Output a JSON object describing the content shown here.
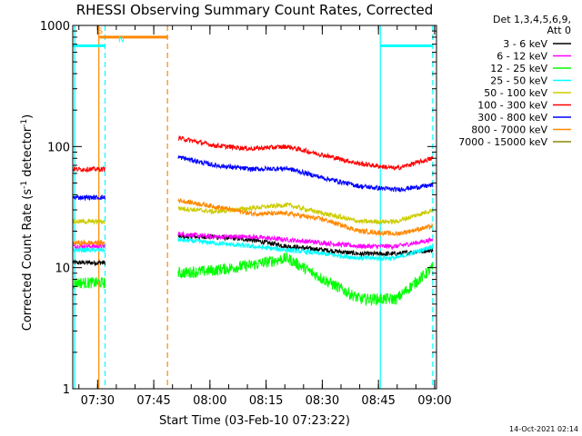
{
  "chart_data": {
    "type": "line",
    "title": "RHESSI Observing Summary Count Rates, Corrected",
    "xlabel": "Start Time (03-Feb-10 07:23:22)",
    "ylabel_main": "Corrected Count Rate (s",
    "ylabel_sup1": "-1",
    "ylabel_mid": " detector",
    "ylabel_sup2": "-1",
    "ylabel_end": ")",
    "yscale": "log",
    "xlim": [
      "07:23:22",
      "09:00:30"
    ],
    "ylim": [
      1,
      1000
    ],
    "y_ticks": [
      {
        "v": 1,
        "label": "1"
      },
      {
        "v": 10,
        "label": "10"
      },
      {
        "v": 100,
        "label": "100"
      },
      {
        "v": 1000,
        "label": "1000"
      }
    ],
    "x_ticks": [
      {
        "t": "07:30",
        "label": "07:30"
      },
      {
        "t": "07:45",
        "label": "07:45"
      },
      {
        "t": "08:00",
        "label": "08:00"
      },
      {
        "t": "08:15",
        "label": "08:15"
      },
      {
        "t": "08:30",
        "label": "08:30"
      },
      {
        "t": "08:45",
        "label": "08:45"
      },
      {
        "t": "09:00",
        "label": "09:00"
      }
    ],
    "legend_header": [
      "Det 1,3,4,5,6,9,",
      "Att 0"
    ],
    "legend_position": "top-right-outside",
    "series": [
      {
        "name": "3 - 6 keV",
        "color": "#000000",
        "pre": 11,
        "post": [
          18,
          18,
          17,
          15,
          14,
          13,
          13,
          14
        ]
      },
      {
        "name": "6 - 12 keV",
        "color": "#ff00ff",
        "pre": 15,
        "post": [
          19,
          18,
          18,
          17,
          16,
          15,
          15,
          17
        ]
      },
      {
        "name": "12 - 25 keV",
        "color": "#00ff00",
        "pre": 7.5,
        "post": [
          9,
          9.5,
          10.5,
          12,
          8,
          5.5,
          5.5,
          10
        ]
      },
      {
        "name": "25 - 50 keV",
        "color": "#00ffff",
        "pre": 14,
        "post": [
          17,
          16,
          15,
          14,
          13,
          12,
          12,
          15
        ]
      },
      {
        "name": "50 - 100 keV",
        "color": "#cccc00",
        "pre": 24,
        "post": [
          31,
          29,
          31,
          33,
          28,
          24,
          24,
          30
        ]
      },
      {
        "name": "100 - 300 keV",
        "color": "#ff0000",
        "pre": 65,
        "post": [
          118,
          102,
          96,
          100,
          85,
          72,
          66,
          80
        ]
      },
      {
        "name": "300 - 800 keV",
        "color": "#0000ff",
        "pre": 38,
        "post": [
          82,
          70,
          65,
          66,
          55,
          47,
          44,
          48
        ]
      },
      {
        "name": "800 - 7000 keV",
        "color": "#ff8800",
        "pre": 16,
        "post": [
          36,
          32,
          28,
          28,
          25,
          20,
          19,
          22
        ]
      },
      {
        "name": "7000 - 15000 keV",
        "color": "#888800",
        "pre": null,
        "post": null
      }
    ],
    "flags": [
      {
        "label": "S",
        "color": "#ff8800",
        "start": "07:30:30",
        "end": "07:48:40",
        "level": 800
      },
      {
        "label": "N",
        "color": "#00ffff",
        "start": "07:23:22",
        "end": "07:32:00",
        "level": 680
      },
      {
        "label": "",
        "color": "#00ffff",
        "start": "08:45:30",
        "end": "08:59:30",
        "level": 680
      }
    ],
    "vlines": [
      {
        "t": "07:23:55",
        "color": "#00ffff",
        "dash": false
      },
      {
        "t": "07:30:20",
        "color": "#ff8800",
        "dash": false
      },
      {
        "t": "07:32:00",
        "color": "#00ffff",
        "dash": true
      },
      {
        "t": "07:48:40",
        "color": "#ff8800",
        "dash": true
      },
      {
        "t": "08:45:30",
        "color": "#00ffff",
        "dash": false
      },
      {
        "t": "08:59:30",
        "color": "#00ffff",
        "dash": true
      }
    ]
  },
  "footer": {
    "timestamp": "14-Oct-2021 02:14"
  }
}
